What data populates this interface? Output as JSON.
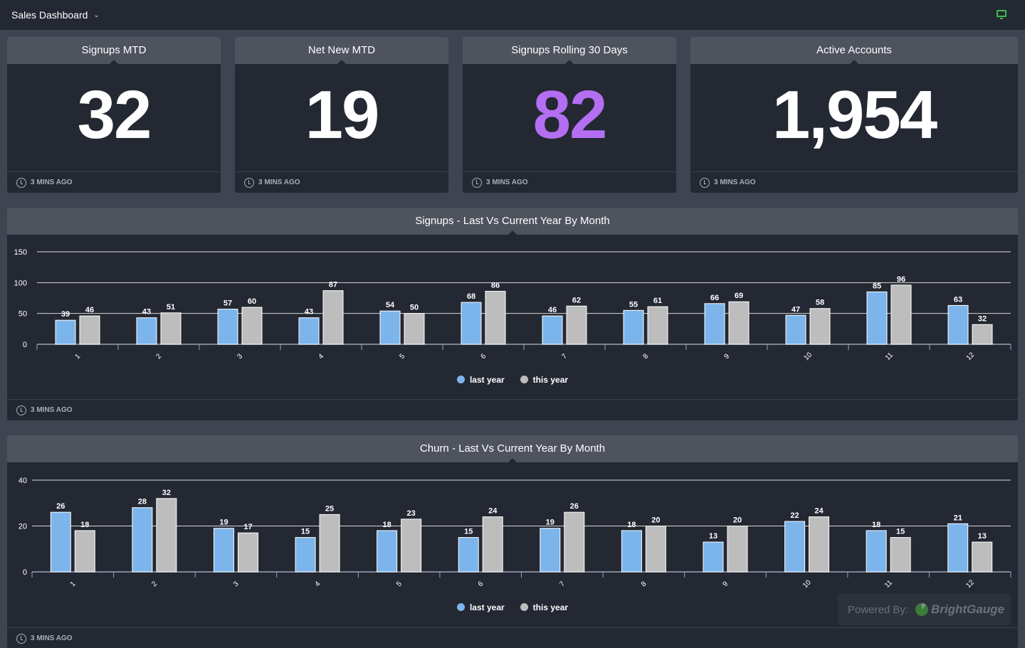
{
  "header": {
    "title": "Sales Dashboard"
  },
  "colors": {
    "last_year": "#7cb5ec",
    "this_year": "#bdbdbe",
    "accent": "#b36ef2",
    "monitor": "#3fb950"
  },
  "kpis": [
    {
      "title": "Signups MTD",
      "value": "32",
      "updated": "3 MINS AGO"
    },
    {
      "title": "Net New MTD",
      "value": "19",
      "updated": "3 MINS AGO"
    },
    {
      "title": "Signups Rolling 30 Days",
      "value": "82",
      "updated": "3 MINS AGO"
    },
    {
      "title": "Active Accounts",
      "value": "1,954",
      "updated": "3 MINS AGO"
    }
  ],
  "chart_data": [
    {
      "type": "bar",
      "title": "Signups - Last Vs Current Year By Month",
      "categories": [
        "1",
        "2",
        "3",
        "4",
        "5",
        "6",
        "7",
        "8",
        "9",
        "10",
        "11",
        "12"
      ],
      "series": [
        {
          "name": "last year",
          "values": [
            39,
            43,
            57,
            43,
            54,
            68,
            46,
            55,
            66,
            47,
            85,
            63
          ]
        },
        {
          "name": "this year",
          "values": [
            46,
            51,
            60,
            87,
            50,
            86,
            62,
            61,
            69,
            58,
            96,
            32
          ]
        }
      ],
      "yticks": [
        0,
        50,
        100,
        150
      ],
      "ylim": [
        0,
        150
      ],
      "grid": true,
      "legend": "bottom",
      "updated": "3 MINS AGO"
    },
    {
      "type": "bar",
      "title": "Churn - Last Vs Current Year By Month",
      "categories": [
        "1",
        "2",
        "3",
        "4",
        "5",
        "6",
        "7",
        "8",
        "9",
        "10",
        "11",
        "12"
      ],
      "series": [
        {
          "name": "last year",
          "values": [
            26,
            28,
            19,
            15,
            18,
            15,
            19,
            18,
            13,
            22,
            18,
            21
          ]
        },
        {
          "name": "this year",
          "values": [
            18,
            32,
            17,
            25,
            23,
            24,
            26,
            20,
            20,
            24,
            15,
            13
          ]
        }
      ],
      "yticks": [
        0,
        20,
        40
      ],
      "ylim": [
        0,
        40
      ],
      "grid": true,
      "legend": "bottom",
      "updated": "3 MINS AGO"
    }
  ],
  "footer": {
    "powered_by": "Powered By:",
    "brand": "BrightGauge"
  }
}
